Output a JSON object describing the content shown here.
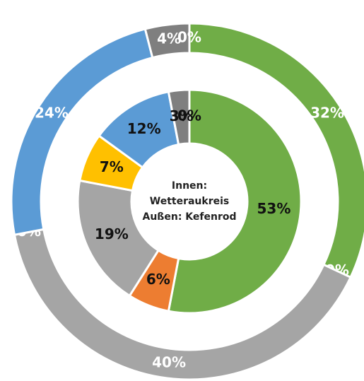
{
  "chart_data": {
    "type": "donut",
    "annotation_lines": [
      "Innen:",
      "Wetteraukreis",
      "Außen: Kefenrod"
    ],
    "colors": [
      "#70ad47",
      "#ed7d31",
      "#a5a5a5",
      "#ffc000",
      "#5b9bd5",
      "#7f7f7f",
      "#264478"
    ],
    "series": [
      {
        "ring": "outer",
        "values": [
          32,
          0,
          40,
          0,
          24,
          4,
          0
        ],
        "value_labels": [
          "32%",
          "0%",
          "40%",
          "0%",
          "24%",
          "4%",
          "0%"
        ]
      },
      {
        "ring": "inner",
        "values": [
          53,
          6,
          19,
          7,
          12,
          3,
          0
        ],
        "value_labels": [
          "53%",
          "6%",
          "19%",
          "7%",
          "12%",
          "3%",
          "0%"
        ]
      }
    ]
  }
}
